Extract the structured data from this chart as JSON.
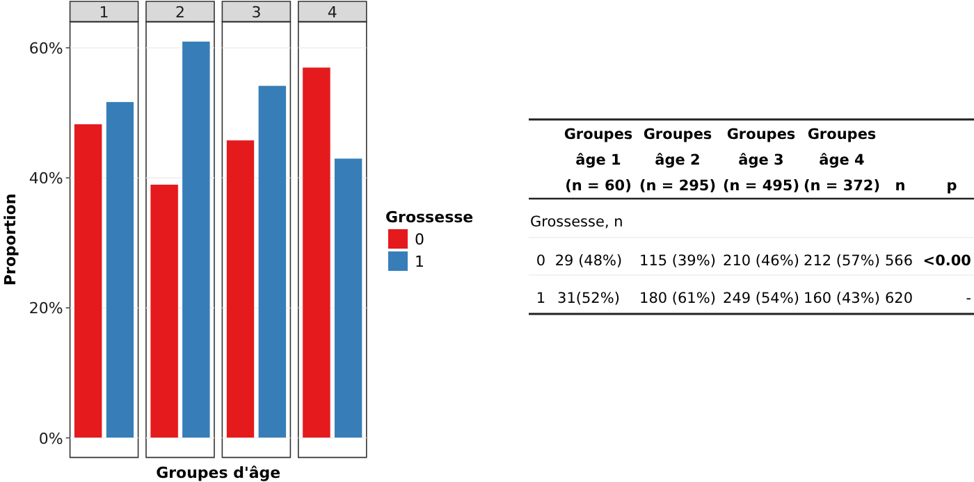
{
  "chart_data": [
    {
      "type": "bar",
      "categories": [
        "1",
        "2",
        "3",
        "4"
      ],
      "xlabel": "Groupes d'âge",
      "ylabel": "Proportion",
      "legend_title": "Grossesse",
      "legend": "right",
      "grid": "y",
      "tick_labels": "y",
      "ylim": [
        -3,
        64
      ],
      "yticks": [
        {
          "value": 0,
          "label": "0%"
        },
        {
          "value": 20,
          "label": "20%"
        },
        {
          "value": 40,
          "label": "40%"
        },
        {
          "value": 60,
          "label": "60%"
        }
      ],
      "series": [
        {
          "name": "0",
          "color": "#e41a1c",
          "values": [
            48.3,
            39.0,
            45.8,
            57.0
          ]
        },
        {
          "name": "1",
          "color": "#377eb8",
          "values": [
            51.7,
            61.0,
            54.2,
            43.0
          ]
        }
      ]
    },
    {
      "type": "other",
      "categories": [
        "Groupes âge 1 (n = 60)",
        "Groupes âge 2 (n = 295)",
        "Groupes âge 3 (n = 495)",
        "Groupes âge 4 (n = 372)",
        "n",
        "p"
      ],
      "y_categories": [
        "Grossesse, n",
        "0",
        "1"
      ],
      "cell_labels": [
        [
          null,
          null,
          null,
          null,
          null,
          null
        ],
        [
          "29 (48%)",
          "115 (39%)",
          "210 (46%)",
          "212 (57%)",
          "566",
          "<0.00"
        ],
        [
          "31(52%)",
          "180 (61%)",
          "249 (54%)",
          "160 (43%)",
          "620",
          "-"
        ]
      ]
    }
  ]
}
